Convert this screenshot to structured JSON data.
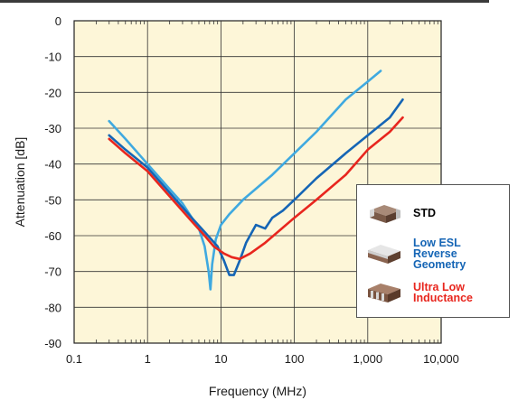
{
  "chart_data": {
    "type": "line",
    "xlabel": "Frequency (MHz)",
    "ylabel": "Attenuation [dB]",
    "x_scale": "log",
    "xlim": [
      0.1,
      10000
    ],
    "ylim": [
      -90,
      0
    ],
    "x_ticks": [
      {
        "value": 0.1,
        "label": "0.1"
      },
      {
        "value": 1,
        "label": "1"
      },
      {
        "value": 10,
        "label": "10"
      },
      {
        "value": 100,
        "label": "100"
      },
      {
        "value": 1000,
        "label": "1,000"
      },
      {
        "value": 10000,
        "label": "10,000"
      }
    ],
    "y_ticks": [
      0,
      -10,
      -20,
      -30,
      -40,
      -50,
      -60,
      -70,
      -80,
      -90
    ],
    "grid": true,
    "legend_position": "right",
    "series": [
      {
        "name": "STD",
        "color": "#3fa9e0",
        "points": [
          [
            0.3,
            -28
          ],
          [
            0.5,
            -33
          ],
          [
            1,
            -40
          ],
          [
            2,
            -47
          ],
          [
            3,
            -51
          ],
          [
            5,
            -58
          ],
          [
            6,
            -63
          ],
          [
            6.8,
            -70
          ],
          [
            7.2,
            -75
          ],
          [
            7.6,
            -68
          ],
          [
            8.5,
            -61
          ],
          [
            10,
            -57
          ],
          [
            13,
            -54
          ],
          [
            20,
            -50
          ],
          [
            50,
            -43
          ],
          [
            100,
            -37
          ],
          [
            200,
            -31
          ],
          [
            500,
            -22
          ],
          [
            1000,
            -17
          ],
          [
            1500,
            -14
          ]
        ]
      },
      {
        "name": "Low ESL Reverse Geometry",
        "color": "#1565b5",
        "points": [
          [
            0.3,
            -32
          ],
          [
            0.5,
            -36
          ],
          [
            1,
            -41
          ],
          [
            2,
            -48
          ],
          [
            4,
            -55
          ],
          [
            6,
            -59
          ],
          [
            9,
            -63
          ],
          [
            11,
            -67
          ],
          [
            13,
            -71
          ],
          [
            15,
            -71
          ],
          [
            18,
            -67
          ],
          [
            22,
            -62
          ],
          [
            30,
            -57
          ],
          [
            40,
            -58
          ],
          [
            50,
            -55
          ],
          [
            70,
            -53
          ],
          [
            100,
            -50
          ],
          [
            200,
            -44
          ],
          [
            500,
            -37
          ],
          [
            1000,
            -32
          ],
          [
            2000,
            -27
          ],
          [
            3000,
            -22
          ]
        ]
      },
      {
        "name": "Ultra Low Inductance",
        "color": "#e8261e",
        "points": [
          [
            0.3,
            -33
          ],
          [
            0.5,
            -37
          ],
          [
            1,
            -42
          ],
          [
            2,
            -49
          ],
          [
            4,
            -56
          ],
          [
            6,
            -60
          ],
          [
            8,
            -63
          ],
          [
            11,
            -65
          ],
          [
            14,
            -66
          ],
          [
            18,
            -66.5
          ],
          [
            25,
            -65
          ],
          [
            40,
            -62
          ],
          [
            100,
            -55
          ],
          [
            200,
            -50
          ],
          [
            500,
            -43
          ],
          [
            1000,
            -36
          ],
          [
            2000,
            -31
          ],
          [
            3000,
            -27
          ]
        ]
      }
    ]
  }
}
